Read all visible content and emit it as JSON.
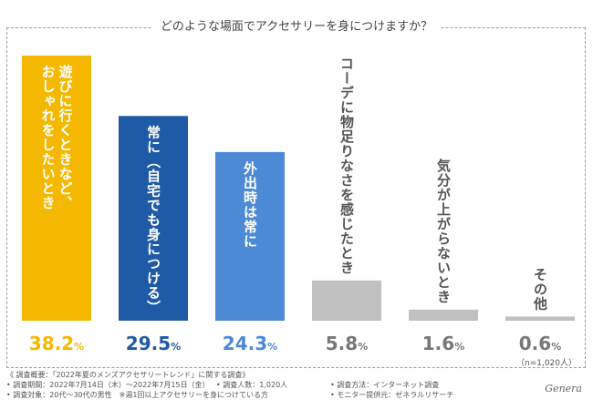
{
  "chart_data": {
    "type": "bar",
    "title": "どのような場面でアクセサリーを身につけますか？",
    "categories": [
      "遊びに行くときなど、おしゃれをしたいとき",
      "常に（自宅でも身につける）",
      "外出時は常に",
      "コーデに物足りなさを感じたとき",
      "気分が上がらないとき",
      "その他"
    ],
    "values": [
      38.2,
      29.5,
      24.3,
      5.8,
      1.6,
      0.6
    ],
    "value_labels": [
      {
        "num": "38.2",
        "unit": "%"
      },
      {
        "num": "29.5",
        "unit": "%"
      },
      {
        "num": "24.3",
        "unit": "%"
      },
      {
        "num": "5.8",
        "unit": "%"
      },
      {
        "num": "1.6",
        "unit": "%"
      },
      {
        "num": "0.6",
        "unit": "%"
      }
    ],
    "label_columns": [
      [
        "遊びに行くときなど、",
        "おしゃれをしたいとき"
      ],
      [
        "常に（自宅でも身につける）"
      ],
      [
        "外出時は常に"
      ],
      [
        "コーデに物足りなさを感じたとき"
      ],
      [
        "気分が上がらないとき"
      ],
      [
        "その他"
      ]
    ],
    "colors": [
      "#f5b800",
      "#1f5aa6",
      "#4d8ad6",
      "#c0c0c0",
      "#c0c0c0",
      "#c0c0c0"
    ],
    "value_colors": [
      "#f5b800",
      "#1f5aa6",
      "#4d8ad6",
      "#777777",
      "#777777",
      "#777777"
    ],
    "label_colors": [
      "#ffffff",
      "#ffffff",
      "#ffffff",
      "#555555",
      "#555555",
      "#555555"
    ],
    "ylim": [
      0,
      38.2
    ],
    "sample_note": "（n=1,020人）",
    "xlabel": "",
    "ylabel": ""
  },
  "survey": {
    "overview": "《 調査概要：「2022年夏のメンズアクセサリートレンド」に関する調査》",
    "period": "• 調査期間：2022年7月14日（木）〜2022年7月15日（金）",
    "count": "• 調査人数：1,020人",
    "method": "• 調査方法：インターネット調査",
    "target": "• 調査対象：20代〜30代の男性　※週1回以上アクセサリーを身につけている方",
    "monitor": "• モニター提供元：ゼネラルリサーチ"
  },
  "signature": "Genera"
}
